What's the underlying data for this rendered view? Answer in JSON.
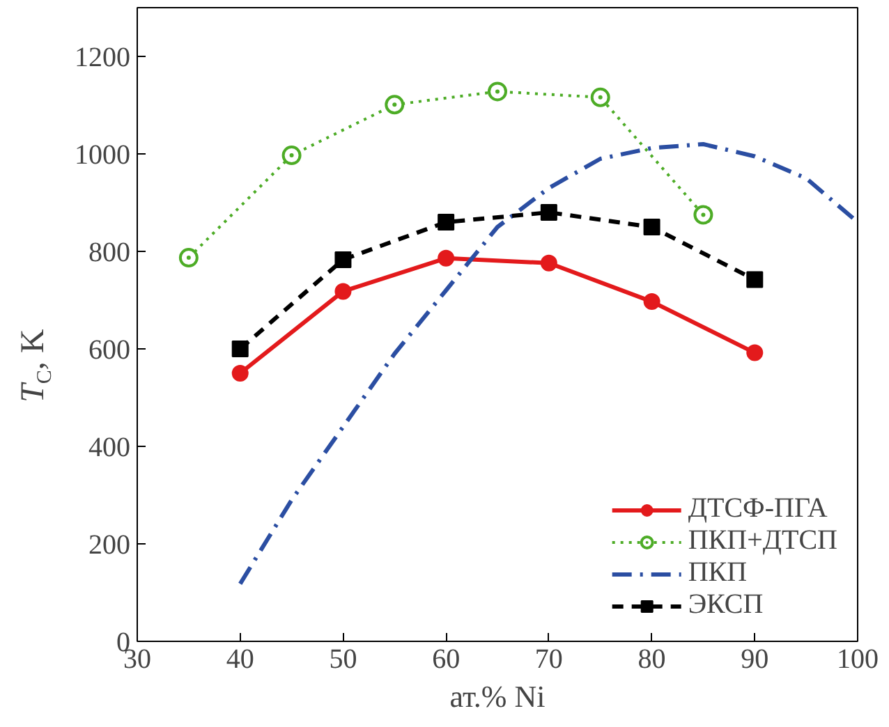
{
  "chart_data": {
    "type": "line",
    "xlabel": "ат.% Ni",
    "ylabel": "T$_{C}$, K",
    "xlim": [
      30,
      100
    ],
    "xticks": [
      30,
      40,
      50,
      60,
      70,
      80,
      90,
      100
    ],
    "ylim": [
      0,
      1300
    ],
    "yticks": [
      0,
      200,
      400,
      600,
      800,
      1000,
      1200
    ],
    "grid": false,
    "legend": "bottom right",
    "series": [
      {
        "name": "ДТСФ-ПГА",
        "color": "#e31a1c",
        "x": [
          40,
          50,
          60,
          70,
          80,
          90
        ],
        "values": [
          550,
          718,
          786,
          776,
          697,
          592
        ],
        "marker": "circle",
        "line_style": "solid"
      },
      {
        "name": "ПКП+ДТСП",
        "color": "#4dac26",
        "x": [
          35,
          45,
          55,
          65,
          75,
          85
        ],
        "values": [
          787,
          997,
          1101,
          1128,
          1116,
          875
        ],
        "marker": "circle_dot",
        "line_style": "dotted"
      },
      {
        "name": "ПКП",
        "color": "#2b4ea2",
        "x": [
          40,
          45,
          50,
          55,
          60,
          65,
          70,
          75,
          80,
          85,
          90,
          95,
          100
        ],
        "values": [
          118,
          290,
          440,
          590,
          720,
          850,
          930,
          990,
          1012,
          1020,
          995,
          950,
          860
        ],
        "marker": "none",
        "line_style": "dashdot"
      },
      {
        "name": "ЭКСП",
        "color": "#000000",
        "x": [
          40,
          50,
          60,
          70,
          80,
          90
        ],
        "values": [
          600,
          783,
          860,
          880,
          850,
          742
        ],
        "marker": "square",
        "line_style": "dashed"
      }
    ]
  }
}
